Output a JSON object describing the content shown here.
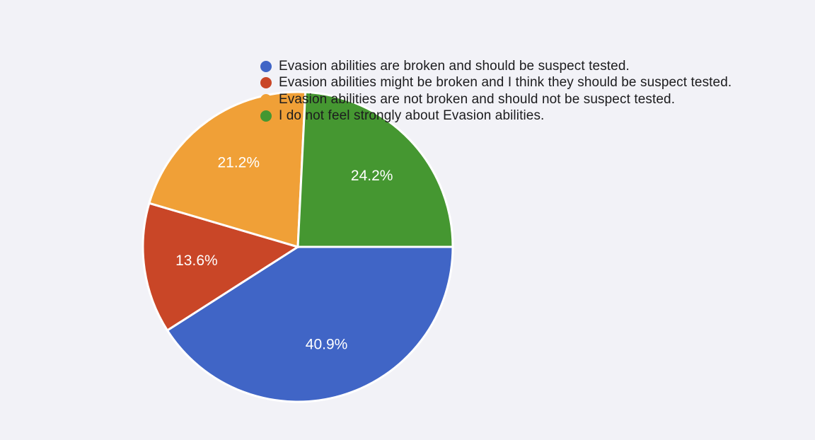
{
  "chart_data": {
    "type": "pie",
    "title": "",
    "legend_position": "top",
    "slices": [
      {
        "label": "Evasion abilities are broken and should be suspect tested.",
        "value": 40.9,
        "value_label": "40.9%",
        "color": "#4065c6"
      },
      {
        "label": "Evasion abilities might be broken and I think they should be suspect tested.",
        "value": 13.6,
        "value_label": "13.6%",
        "color": "#c94627"
      },
      {
        "label": "Evasion abilities are not broken and should not be suspect tested.",
        "value": 21.2,
        "value_label": "21.2%",
        "color": "#f0a037"
      },
      {
        "label": "I do not feel strongly about Evasion abilities.",
        "value": 24.2,
        "value_label": "24.2%",
        "color": "#459731"
      }
    ]
  }
}
